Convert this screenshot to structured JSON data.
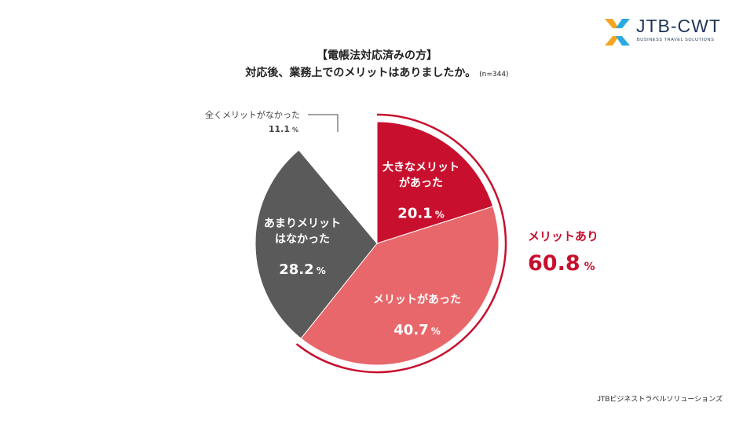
{
  "header": {
    "title_line1": "【電帳法対応済みの方】",
    "title_line2": "対応後、業務上でのメリットはありましたか。",
    "sample": "(n=344)"
  },
  "logo": {
    "name": "JTB-CWT",
    "tagline": "BUSINESS TRAVEL SOLUTIONS",
    "colors": [
      "#f5a623",
      "#29abe2",
      "#1d3557"
    ]
  },
  "chart_data": {
    "type": "pie",
    "title": "対応後、業務上でのメリットはありましたか。",
    "slices": [
      {
        "label": "大きなメリットがあった",
        "label_lines": [
          "大きなメリット",
          "があった"
        ],
        "value": 20.1,
        "color": "#c8102e"
      },
      {
        "label": "メリットがあった",
        "label_lines": [
          "メリットがあった"
        ],
        "value": 40.7,
        "color": "#e8676b"
      },
      {
        "label": "あまりメリットはなかった",
        "label_lines": [
          "あまりメリット",
          "はなかった"
        ],
        "value": 28.2,
        "color": "#5a5a5a"
      },
      {
        "label": "全くメリットがなかった",
        "label_lines": [
          "全くメリットがなかった"
        ],
        "value": 11.1,
        "color": "#ffffff"
      }
    ],
    "unit": "%",
    "summary": {
      "label": "メリットあり",
      "value": 60.8,
      "color": "#c8102e"
    }
  },
  "footer": {
    "company": "JTBビジネストラベルソリューションズ"
  }
}
